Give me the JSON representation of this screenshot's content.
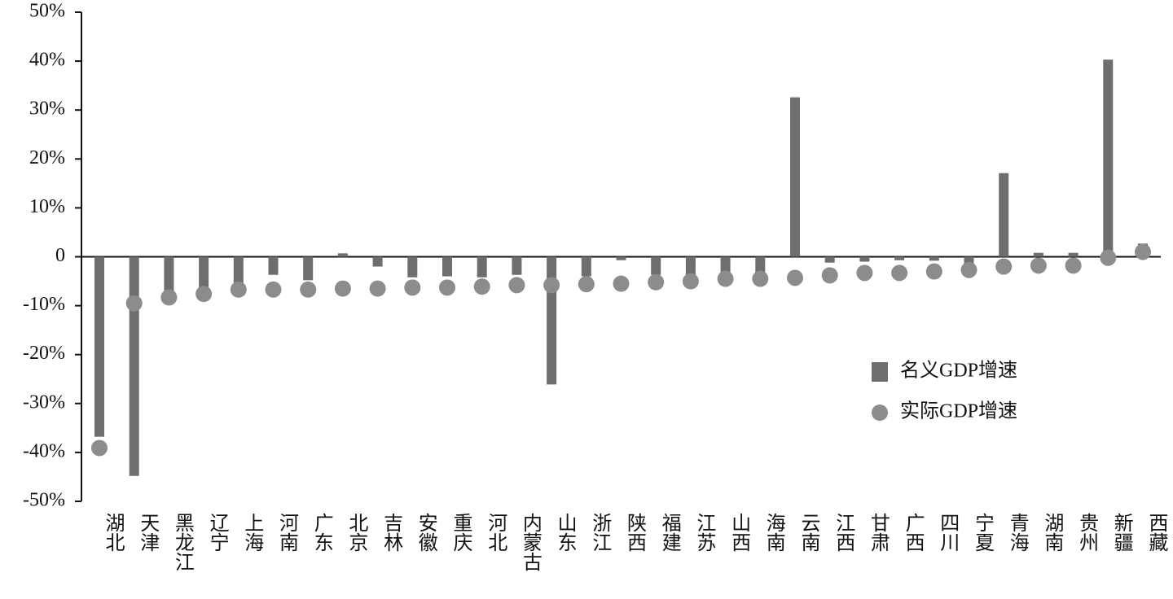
{
  "chart_data": {
    "type": "bar",
    "categories": [
      "湖北",
      "天津",
      "黑龙江",
      "辽宁",
      "上海",
      "河南",
      "广东",
      "北京",
      "吉林",
      "安徽",
      "重庆",
      "河北",
      "内蒙古",
      "山东",
      "浙江",
      "陕西",
      "福建",
      "江苏",
      "山西",
      "海南",
      "云南",
      "江西",
      "甘肃",
      "广西",
      "四川",
      "宁夏",
      "青海",
      "湖南",
      "贵州",
      "新疆",
      "西藏"
    ],
    "series": [
      {
        "name": "名义GDP增速",
        "type": "bar",
        "color": "#6e6e6e",
        "values": [
          -36.8,
          -44.8,
          -7.3,
          -7,
          -5.7,
          -3.7,
          -4.8,
          0.7,
          -2,
          -4.2,
          -4,
          -4.2,
          -3.7,
          -26.1,
          -4,
          -0.7,
          -3.7,
          -3.7,
          -3.3,
          -3.3,
          32.6,
          -1.2,
          -1,
          -0.7,
          -0.8,
          -1.8,
          17.1,
          0.8,
          0.8,
          40.3,
          2.7
        ]
      },
      {
        "name": "实际GDP增速",
        "type": "scatter",
        "color": "#8c8c8c",
        "values": [
          -39.1,
          -9.5,
          -8.3,
          -7.6,
          -6.7,
          -6.7,
          -6.7,
          -6.5,
          -6.5,
          -6.3,
          -6.3,
          -6.1,
          -5.8,
          -5.8,
          -5.6,
          -5.5,
          -5.2,
          -5,
          -4.5,
          -4.5,
          -4.3,
          -3.8,
          -3.3,
          -3.3,
          -3,
          -2.7,
          -2,
          -1.8,
          -1.8,
          -0.2,
          1
        ]
      }
    ],
    "ylim": [
      -50,
      50
    ],
    "yticks": [
      {
        "value": -50,
        "label": "-50%"
      },
      {
        "value": -40,
        "label": "-40%"
      },
      {
        "value": -30,
        "label": "-30%"
      },
      {
        "value": -20,
        "label": "-20%"
      },
      {
        "value": -10,
        "label": "-10%"
      },
      0,
      {
        "value": 10,
        "label": "10%"
      },
      {
        "value": 20,
        "label": "20%"
      },
      {
        "value": 30,
        "label": "30%"
      },
      {
        "value": 40,
        "label": "40%"
      },
      {
        "value": 50,
        "label": "50%"
      }
    ],
    "legend": "right"
  }
}
